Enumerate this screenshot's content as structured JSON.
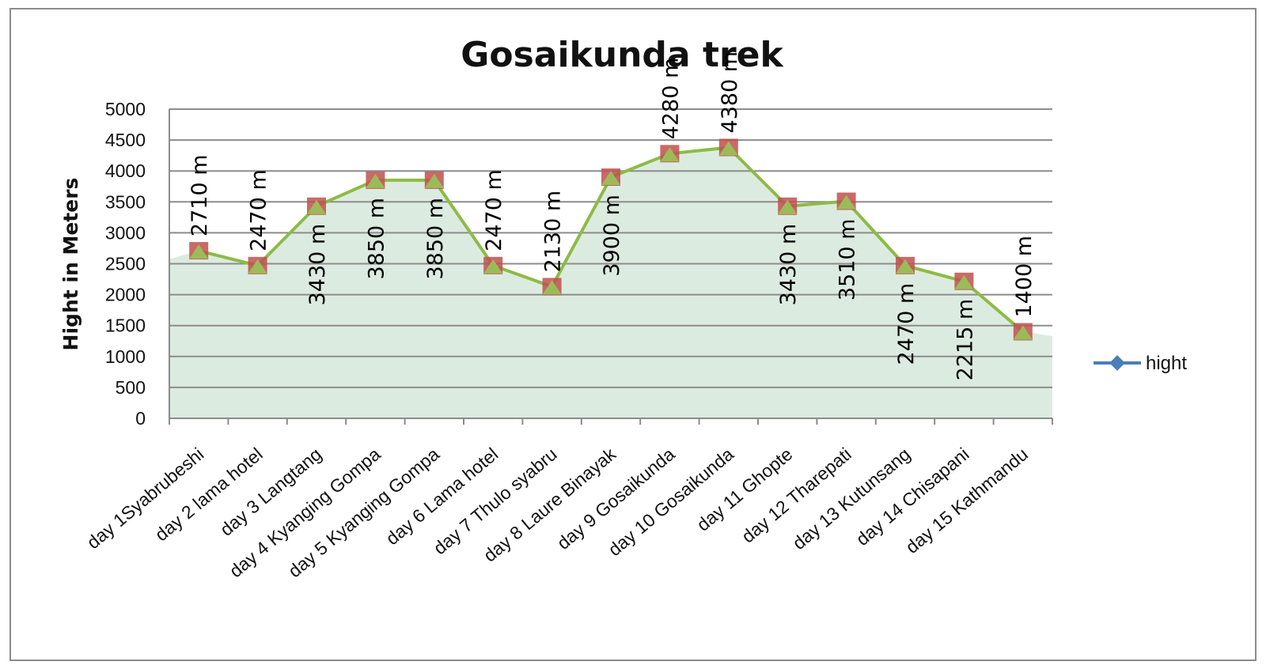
{
  "chart_data": {
    "type": "line",
    "title": "Gosaikunda trek",
    "xlabel": "",
    "ylabel": "Hight in Meters",
    "ylim": [
      0,
      5000
    ],
    "yticks": [
      0,
      500,
      1000,
      1500,
      2000,
      2500,
      3000,
      3500,
      4000,
      4500,
      5000
    ],
    "grid": true,
    "legend": "right",
    "categories": [
      "day 1Syabrubeshi",
      "day 2 lama hotel",
      "day 3 Langtang",
      "day 4 Kyanging Gompa",
      "day 5 Kyanging Gompa",
      "day 6 Lama hotel",
      "day 7 Thulo syabru",
      "day 8 Laure Binayak",
      "day 9 Gosaikunda",
      "day 10 Gosaikunda",
      "day 11 Ghopte",
      "day 12 Tharepati",
      "day 13 Kutunsang",
      "day 14 Chisapani",
      "day 15 Kathmandu"
    ],
    "series": [
      {
        "name": "hight",
        "values": [
          2710,
          2470,
          3430,
          3850,
          3850,
          2470,
          2130,
          3900,
          4280,
          4380,
          3430,
          3510,
          2470,
          2215,
          1400
        ],
        "labels": [
          "2710 m",
          "2470 m",
          "3430 m",
          "3850 m",
          "3850 m",
          "2470 m",
          "2130 m",
          "3900 m",
          "4280 m",
          "4380 m",
          "3430 m",
          "3510 m",
          "2470 m",
          "2215 m",
          "1400 m"
        ]
      }
    ],
    "colors": {
      "line": "#8dbb45",
      "marker_square": "#c0504d",
      "marker_triangle": "#9bbb59",
      "area": "#dcebe0",
      "grid": "#8c8c8c",
      "legend_line": "#4a7ebb",
      "legend_marker": "#4a7ebb"
    }
  }
}
